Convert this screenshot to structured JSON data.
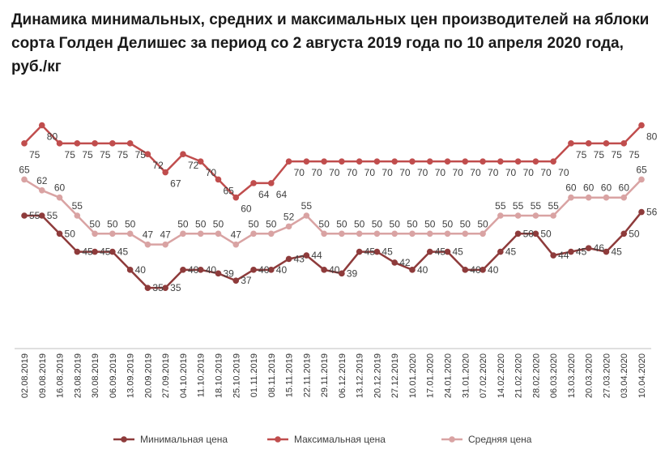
{
  "chart_data": {
    "type": "line",
    "title": "Динамика минимальных, средних и максимальных цен производителей на яблоки сорта Голден Делишес за период со 2 августа 2019 года по 10 апреля 2020 года, руб./кг",
    "xlabel": "",
    "ylabel": "",
    "ylim": [
      20,
      90
    ],
    "grid": false,
    "legend_position": "bottom",
    "categories": [
      "02.08.2019",
      "09.08.2019",
      "16.08.2019",
      "23.08.2019",
      "30.08.2019",
      "06.09.2019",
      "13.09.2019",
      "20.09.2019",
      "27.09.2019",
      "04.10.2019",
      "11.10.2019",
      "18.10.2019",
      "25.10.2019",
      "01.11.2019",
      "08.11.2019",
      "15.11.2019",
      "22.11.2019",
      "29.11.2019",
      "06.12.2019",
      "13.12.2019",
      "20.12.2019",
      "27.12.2019",
      "10.01.2020",
      "17.01.2020",
      "24.01.2020",
      "31.01.2020",
      "07.02.2020",
      "14.02.2020",
      "21.02.2020",
      "28.02.2020",
      "06.03.2020",
      "13.03.2020",
      "20.03.2020",
      "27.03.2020",
      "03.04.2020",
      "10.04.2020"
    ],
    "series": [
      {
        "name": "Минимальная цена",
        "color": "#8e3b3b",
        "label_position": "right",
        "values": [
          55,
          55,
          50,
          45,
          45,
          45,
          40,
          35,
          35,
          40,
          40,
          39,
          37,
          40,
          40,
          43,
          44,
          40,
          39,
          45,
          45,
          42,
          40,
          45,
          45,
          40,
          40,
          45,
          50,
          50,
          44,
          45,
          46,
          45,
          50,
          56
        ]
      },
      {
        "name": "Максимальная цена",
        "color": "#c04d4d",
        "label_position": "below",
        "values": [
          75,
          80,
          75,
          75,
          75,
          75,
          75,
          72,
          67,
          72,
          70,
          65,
          60,
          64,
          64,
          70,
          70,
          70,
          70,
          70,
          70,
          70,
          70,
          70,
          70,
          70,
          70,
          70,
          70,
          70,
          70,
          75,
          75,
          75,
          75,
          80
        ]
      },
      {
        "name": "Средняя цена",
        "color": "#d9a3a3",
        "label_position": "above",
        "values": [
          65,
          62,
          60,
          55,
          50,
          50,
          50,
          47,
          47,
          50,
          50,
          50,
          47,
          50,
          50,
          52,
          55,
          50,
          50,
          50,
          50,
          50,
          50,
          50,
          50,
          50,
          50,
          55,
          55,
          55,
          55,
          60,
          60,
          60,
          60,
          65
        ]
      }
    ]
  }
}
